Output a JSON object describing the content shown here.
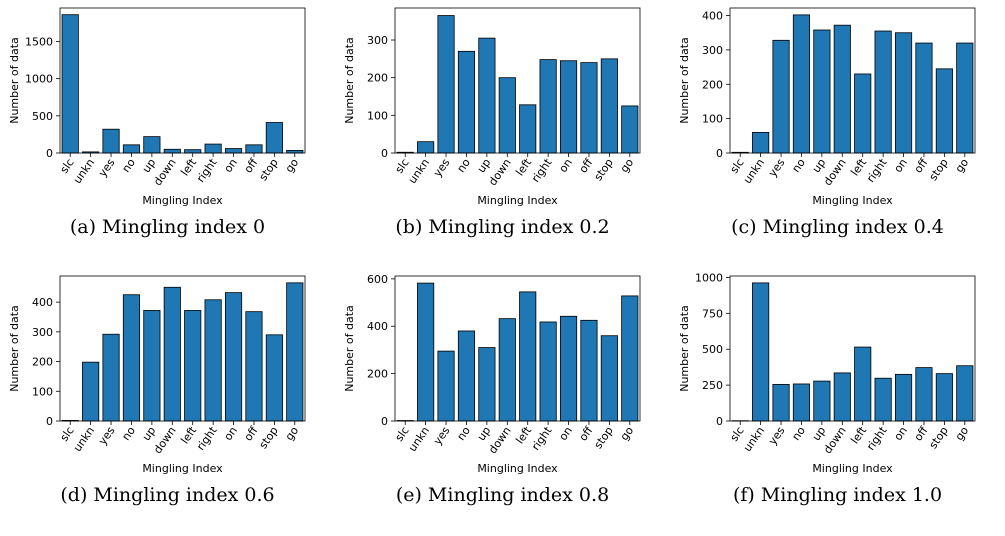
{
  "colors": {
    "bar": "#1f77b4",
    "edge": "#000000"
  },
  "chart_data": [
    {
      "type": "bar",
      "caption": "(a) Mingling index 0",
      "xlabel": "Mingling Index",
      "ylabel": "Number of data",
      "categories": [
        "slc",
        "unkn",
        "yes",
        "no",
        "up",
        "down",
        "left",
        "right",
        "on",
        "off",
        "stop",
        "go"
      ],
      "values": [
        1860,
        15,
        320,
        110,
        220,
        50,
        45,
        120,
        60,
        110,
        410,
        35
      ],
      "ylim": [
        0,
        1950
      ],
      "yticks": [
        0,
        500,
        1000,
        1500
      ]
    },
    {
      "type": "bar",
      "caption": "(b) Mingling index 0.2",
      "xlabel": "Mingling Index",
      "ylabel": "Number of data",
      "categories": [
        "slc",
        "unkn",
        "yes",
        "no",
        "up",
        "down",
        "left",
        "right",
        "on",
        "off",
        "stop",
        "go"
      ],
      "values": [
        2,
        30,
        365,
        270,
        305,
        200,
        128,
        248,
        245,
        240,
        250,
        125
      ],
      "ylim": [
        0,
        385
      ],
      "yticks": [
        0,
        100,
        200,
        300
      ]
    },
    {
      "type": "bar",
      "caption": "(c) Mingling index 0.4",
      "xlabel": "Mingling Index",
      "ylabel": "Number of data",
      "categories": [
        "slc",
        "unkn",
        "yes",
        "no",
        "up",
        "down",
        "left",
        "right",
        "on",
        "off",
        "stop",
        "go"
      ],
      "values": [
        2,
        60,
        328,
        402,
        358,
        372,
        230,
        355,
        350,
        320,
        245,
        320
      ],
      "ylim": [
        0,
        422
      ],
      "yticks": [
        0,
        100,
        200,
        300,
        400
      ]
    },
    {
      "type": "bar",
      "caption": "(d) Mingling index 0.6",
      "xlabel": "Mingling Index",
      "ylabel": "Number of data",
      "categories": [
        "slc",
        "unkn",
        "yes",
        "no",
        "up",
        "down",
        "left",
        "right",
        "on",
        "off",
        "stop",
        "go"
      ],
      "values": [
        2,
        198,
        292,
        425,
        372,
        450,
        372,
        408,
        432,
        368,
        290,
        465
      ],
      "ylim": [
        0,
        488
      ],
      "yticks": [
        0,
        100,
        200,
        300,
        400
      ]
    },
    {
      "type": "bar",
      "caption": "(e) Mingling index 0.8",
      "xlabel": "Mingling Index",
      "ylabel": "Number of data",
      "categories": [
        "slc",
        "unkn",
        "yes",
        "no",
        "up",
        "down",
        "left",
        "right",
        "on",
        "off",
        "stop",
        "go"
      ],
      "values": [
        2,
        582,
        295,
        380,
        310,
        432,
        545,
        418,
        442,
        425,
        360,
        528
      ],
      "ylim": [
        0,
        612
      ],
      "yticks": [
        0,
        200,
        400,
        600
      ]
    },
    {
      "type": "bar",
      "caption": "(f) Mingling index 1.0",
      "xlabel": "Mingling Index",
      "ylabel": "Number of data",
      "categories": [
        "slc",
        "unkn",
        "yes",
        "no",
        "up",
        "down",
        "left",
        "right",
        "on",
        "off",
        "stop",
        "go"
      ],
      "values": [
        2,
        962,
        255,
        258,
        278,
        335,
        515,
        298,
        325,
        372,
        330,
        385
      ],
      "ylim": [
        0,
        1010
      ],
      "yticks": [
        0,
        250,
        500,
        750,
        1000
      ]
    }
  ]
}
